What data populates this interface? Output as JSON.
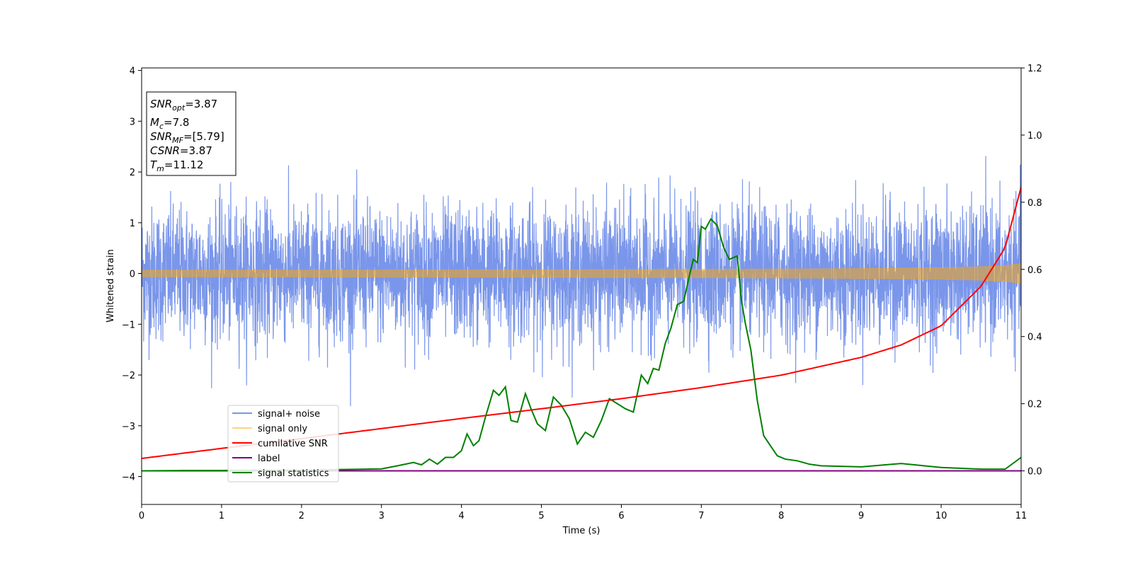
{
  "chart_data": {
    "type": "line",
    "title": "",
    "xlabel": "Time (s)",
    "ylabel": "Whitened strain",
    "xlim": [
      0,
      11
    ],
    "ylim": [
      -4.55,
      4.05
    ],
    "y2lim": [
      -0.1,
      1.2
    ],
    "xticks": [
      0,
      1,
      2,
      3,
      4,
      5,
      6,
      7,
      8,
      9,
      10,
      11
    ],
    "yticks": [
      -4,
      -3,
      -2,
      -1,
      0,
      1,
      2,
      3,
      4
    ],
    "yticks_labels": [
      "−4",
      "−3",
      "−2",
      "−1",
      "0",
      "1",
      "2",
      "3",
      "4"
    ],
    "y2ticks": [
      0.0,
      0.2,
      0.4,
      0.6,
      0.8,
      1.0,
      1.2
    ],
    "y2ticks_labels": [
      "0.0",
      "0.2",
      "0.4",
      "0.6",
      "0.8",
      "1.0",
      "1.2"
    ],
    "grid": false,
    "legend_position": "lower-left",
    "annotation": {
      "snr_opt": {
        "main": "SNR",
        "sub": "opt",
        "value": "=3.87"
      },
      "mc": {
        "main": "M",
        "sub": "c",
        "value": "=7.8"
      },
      "snr_mf": {
        "main": "SNR",
        "sub": "MF",
        "value": "=[5.79]"
      },
      "csnr": {
        "main": "CSNR",
        "value": "=3.87"
      },
      "tm": {
        "main": "T",
        "sub": "m",
        "value": "=11.12"
      }
    },
    "series": [
      {
        "name": "signal+ noise",
        "axis": "left",
        "color": "#4169e1",
        "style": "noise",
        "noise_sigma": 0.65,
        "duration": 11
      },
      {
        "name": "signal only",
        "axis": "left",
        "color": "#ffa500",
        "style": "chirp",
        "amplitude_end": 0.2,
        "time_to_merger": 11.12
      },
      {
        "name": "cumilative SNR",
        "axis": "right",
        "color": "#ff0000",
        "x": [
          0,
          1,
          2,
          3,
          4,
          5,
          6,
          7,
          8,
          9,
          9.5,
          10,
          10.5,
          10.8,
          11
        ],
        "y": [
          0.037,
          0.067,
          0.096,
          0.126,
          0.156,
          0.185,
          0.215,
          0.248,
          0.285,
          0.338,
          0.375,
          0.432,
          0.55,
          0.665,
          0.845
        ]
      },
      {
        "name": "label",
        "axis": "right",
        "color": "#800080",
        "x": [
          0,
          11
        ],
        "y": [
          0.0,
          0.0
        ]
      },
      {
        "name": "signal statistics",
        "axis": "right",
        "color": "#008000",
        "x": [
          0,
          0.5,
          1,
          1.5,
          2,
          2.5,
          3,
          3.2,
          3.4,
          3.5,
          3.6,
          3.7,
          3.8,
          3.9,
          4.0,
          4.07,
          4.15,
          4.22,
          4.3,
          4.4,
          4.47,
          4.55,
          4.62,
          4.7,
          4.8,
          4.87,
          4.95,
          5.05,
          5.15,
          5.25,
          5.35,
          5.45,
          5.55,
          5.65,
          5.75,
          5.85,
          5.95,
          6.05,
          6.15,
          6.25,
          6.33,
          6.4,
          6.47,
          6.55,
          6.62,
          6.7,
          6.78,
          6.85,
          6.9,
          6.95,
          7.0,
          7.05,
          7.12,
          7.2,
          7.28,
          7.35,
          7.45,
          7.5,
          7.55,
          7.62,
          7.7,
          7.78,
          7.85,
          7.95,
          8.05,
          8.2,
          8.35,
          8.5,
          9,
          9.5,
          10,
          10.5,
          10.8,
          11
        ],
        "y": [
          0.0,
          0.001,
          0.001,
          0.002,
          0.002,
          0.004,
          0.006,
          0.015,
          0.025,
          0.018,
          0.035,
          0.02,
          0.04,
          0.04,
          0.06,
          0.11,
          0.075,
          0.09,
          0.16,
          0.24,
          0.225,
          0.25,
          0.15,
          0.145,
          0.23,
          0.185,
          0.14,
          0.12,
          0.22,
          0.195,
          0.155,
          0.08,
          0.115,
          0.1,
          0.15,
          0.215,
          0.2,
          0.185,
          0.175,
          0.285,
          0.26,
          0.305,
          0.3,
          0.38,
          0.425,
          0.495,
          0.505,
          0.58,
          0.63,
          0.62,
          0.728,
          0.72,
          0.75,
          0.73,
          0.665,
          0.63,
          0.64,
          0.51,
          0.44,
          0.36,
          0.21,
          0.105,
          0.08,
          0.045,
          0.035,
          0.03,
          0.02,
          0.015,
          0.012,
          0.022,
          0.01,
          0.005,
          0.005,
          0.04
        ]
      }
    ]
  }
}
